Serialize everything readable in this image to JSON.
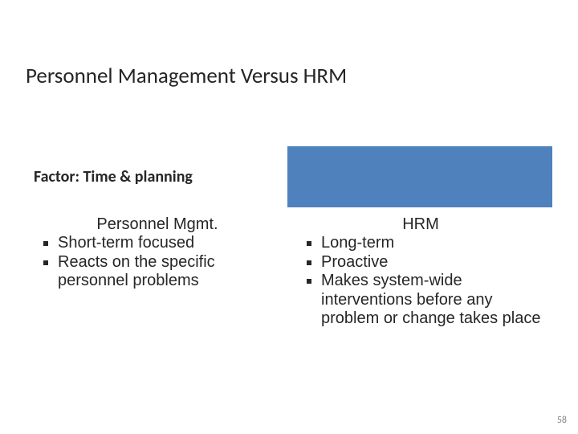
{
  "slide": {
    "title": "Personnel Management Versus HRM",
    "header_band_color": "#4f81bd",
    "factor_label": "Factor: Time & planning",
    "columns": {
      "left": {
        "heading": "Personnel Mgmt.",
        "items": [
          "Short-term focused",
          "Reacts on the specific personnel problems"
        ]
      },
      "right": {
        "heading": "HRM",
        "items": [
          "Long-term",
          "Proactive",
          "Makes system-wide interventions before any problem or change takes place"
        ]
      }
    },
    "page_number": "58"
  },
  "style": {
    "title_fontsize": 27,
    "title_color": "#262626",
    "factor_fontsize": 20,
    "body_fontsize": 20,
    "body_font": "Arial",
    "bullet_color": "#262626",
    "background": "#ffffff",
    "page_num_color": "#888888",
    "page_num_fontsize": 12
  }
}
